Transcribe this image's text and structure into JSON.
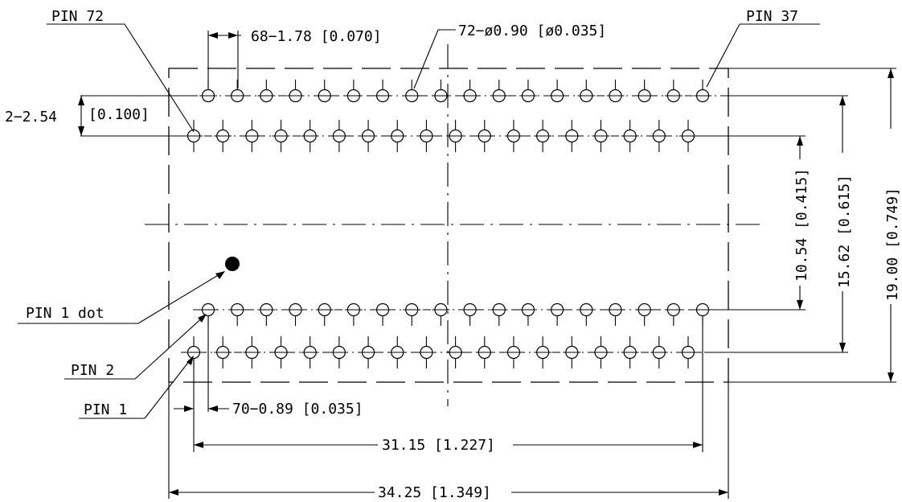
{
  "labels": {
    "pin72": "PIN 72",
    "pin37": "PIN 37",
    "pin1dot": "PIN 1 dot",
    "pin2": "PIN 2",
    "pin1": "PIN 1"
  },
  "dimensions": {
    "pitch": "68−1.78 [0.070]",
    "drill": "72−ø0.90 [ø0.035]",
    "row_offset_value": "2−2.54",
    "row_offset_inch": "[0.100]",
    "offset": "70−0.89 [0.035]",
    "span_pins": "31.15 [1.227]",
    "span_body": "34.25 [1.349]",
    "inner_rows": "10.54 [0.415]",
    "outer_rows": "15.62 [0.615]",
    "body_height": "19.00 [0.749]"
  },
  "pin_counts": {
    "total": 72,
    "per_row": 18
  }
}
